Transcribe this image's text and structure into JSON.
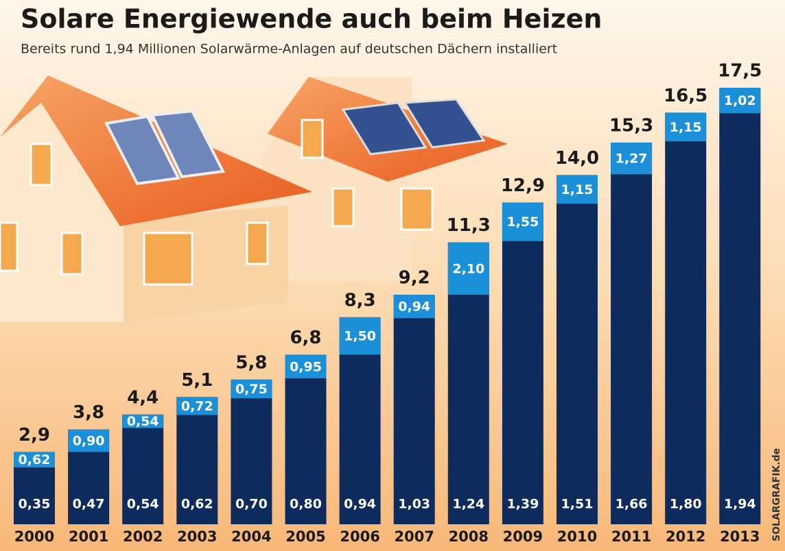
{
  "chart_data": {
    "type": "bar",
    "title": "Solare Energiewende auch beim Heizen",
    "subtitle": "Bereits rund 1,94 Millionen Solarwärme-Anlagen auf deutschen Dächern installiert",
    "credit": "SOLARGRAFIK.de",
    "categories": [
      "2000",
      "2001",
      "2002",
      "2003",
      "2004",
      "2005",
      "2006",
      "2007",
      "2008",
      "2009",
      "2010",
      "2011",
      "2012",
      "2013"
    ],
    "series": [
      {
        "color": "#0d2b5c",
        "values": [
          2.9,
          3.8,
          4.4,
          5.1,
          5.8,
          6.8,
          8.3,
          9.2,
          11.3,
          12.9,
          14.0,
          15.3,
          16.5,
          17.5
        ],
        "value_labels": [
          "2,9",
          "3,8",
          "4,4",
          "5,1",
          "5,8",
          "6,8",
          "8,3",
          "9,2",
          "11,3",
          "12,9",
          "14,0",
          "15,3",
          "16,5",
          "17,5"
        ]
      },
      {
        "color": "#1b8fd8",
        "values": [
          0.62,
          0.9,
          0.54,
          0.72,
          0.75,
          0.95,
          1.5,
          0.94,
          2.1,
          1.55,
          1.15,
          1.27,
          1.15,
          1.02
        ],
        "value_labels": [
          "0,62",
          "0,90",
          "0,54",
          "0,72",
          "0,75",
          "0,95",
          "1,50",
          "0,94",
          "2,10",
          "1,55",
          "1,15",
          "1,27",
          "1,15",
          "1,02"
        ]
      },
      {
        "values": [
          0.35,
          0.47,
          0.54,
          0.62,
          0.7,
          0.8,
          0.94,
          1.03,
          1.24,
          1.39,
          1.51,
          1.66,
          1.8,
          1.94
        ],
        "value_labels": [
          "0,35",
          "0,47",
          "0,54",
          "0,62",
          "0,70",
          "0,80",
          "0,94",
          "1,03",
          "1,24",
          "1,39",
          "1,51",
          "1,66",
          "1,80",
          "1,94"
        ]
      }
    ],
    "ylim": [
      0,
      20
    ]
  }
}
